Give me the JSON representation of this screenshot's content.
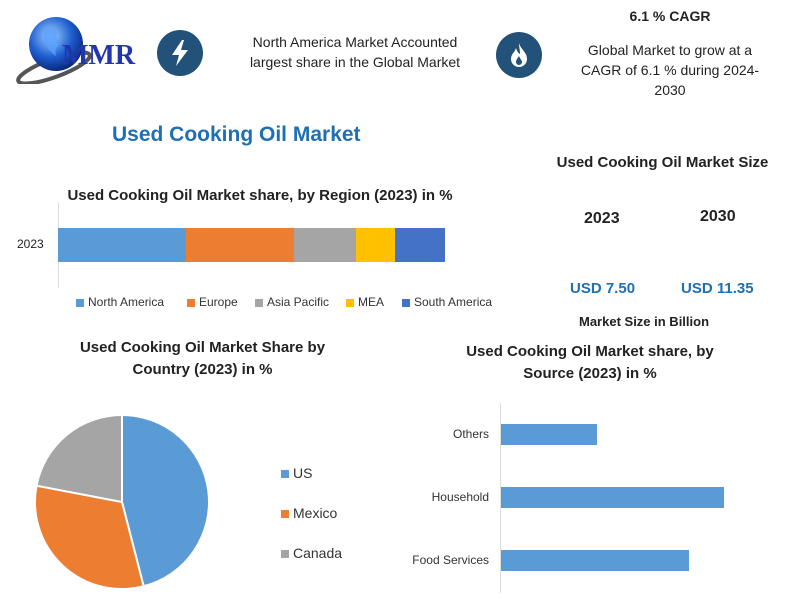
{
  "logo": {
    "text": "MMR"
  },
  "header": {
    "highlight1": "North America Market Accounted largest share in the Global Market",
    "cagr_title": "6.1 % CAGR",
    "cagr_text": "Global Market to grow at a CAGR of 6.1 % during 2024-2030",
    "icon1": "lightning-icon",
    "icon2": "flame-icon"
  },
  "main_title": "Used Cooking Oil Market",
  "market_size": {
    "title": "Used Cooking Oil Market Size",
    "year1": "2023",
    "year2": "2030",
    "value1": "USD 7.50",
    "value2": "USD 11.35",
    "unit_note": "Market Size in Billion"
  },
  "colors": {
    "accent": "#1f6fb5",
    "icon_bg": "#22527a",
    "blue": "#5b9bd5",
    "orange": "#ed7d31",
    "gray": "#a5a5a5",
    "yellow": "#ffc000",
    "darkblue": "#4472c4"
  },
  "chart_data": [
    {
      "type": "bar",
      "orientation": "horizontal",
      "stacked": true,
      "title": "Used Cooking Oil Market share, by Region (2023) in %",
      "categories": [
        "2023"
      ],
      "series": [
        {
          "name": "North America",
          "values": [
            33
          ],
          "color": "#5b9bd5"
        },
        {
          "name": "Europe",
          "values": [
            28
          ],
          "color": "#ed7d31"
        },
        {
          "name": "Asia Pacific",
          "values": [
            16
          ],
          "color": "#a5a5a5"
        },
        {
          "name": "MEA",
          "values": [
            10
          ],
          "color": "#ffc000"
        },
        {
          "name": "South America",
          "values": [
            13
          ],
          "color": "#4472c4"
        }
      ],
      "legend": "bottom"
    },
    {
      "type": "pie",
      "title": "Used Cooking Oil Market Share by Country (2023) in %",
      "labels": [
        "US",
        "Mexico",
        "Canada"
      ],
      "values": [
        46,
        32,
        22
      ],
      "colors": [
        "#5b9bd5",
        "#ed7d31",
        "#a5a5a5"
      ],
      "legend": "right"
    },
    {
      "type": "bar",
      "orientation": "horizontal",
      "title": "Used Cooking Oil Market share, by Source (2023) in %",
      "categories": [
        "Others",
        "Household",
        "Food Services"
      ],
      "values": [
        19,
        44,
        37
      ],
      "color": "#5b9bd5"
    }
  ]
}
